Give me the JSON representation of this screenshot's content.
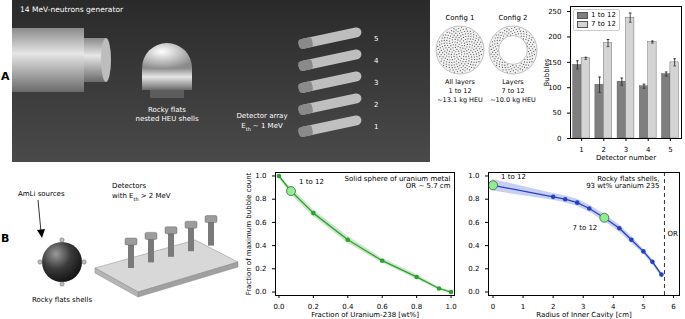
{
  "figure": {
    "panel_labels": [
      "A",
      "B"
    ],
    "photo_A": {
      "generator": "14 MeV-neutrons generator",
      "shells": [
        "Rocky flats",
        "nested HEU shells"
      ],
      "detector_array": {
        "text": "Detector array",
        "symbol": "E",
        "subscript": "th",
        "threshold": "~ 1 MeV"
      },
      "detector_numbers": [
        "5",
        "4",
        "3",
        "2",
        "1"
      ]
    },
    "configs": [
      {
        "name": "Config 1",
        "lines": [
          "All layers",
          "1 to 12",
          "~13.1 kg HEU"
        ],
        "shape": "solid"
      },
      {
        "name": "Config 2",
        "lines": [
          "Layers",
          "7 to 12",
          "~10.0 kg HEU"
        ],
        "shape": "shell"
      }
    ],
    "setup_B": {
      "sources": "AmLi sources",
      "shells": "Rocky flats shells",
      "detectors": {
        "text": "Detectors",
        "prefix": "with ",
        "symbol": "E",
        "subscript": "th",
        "threshold": "> 2 MeV"
      }
    }
  },
  "chart_data": [
    {
      "type": "bar",
      "x": [
        1,
        2,
        3,
        4,
        5
      ],
      "xlim": [
        0.5,
        5.5
      ],
      "xticks": [
        1,
        2,
        3,
        4,
        5
      ],
      "x_label": "Detector number",
      "y_label": "Bubbles",
      "ylim": [
        0,
        260
      ],
      "yticks": [
        0,
        50,
        100,
        150,
        200,
        250
      ],
      "legend": "top-left",
      "series": [
        {
          "name": "1 to 12",
          "color": "#7f7f7f",
          "values": [
            145,
            106,
            112,
            103,
            127
          ],
          "errors": [
            8,
            15,
            7,
            4,
            4
          ]
        },
        {
          "name": "7 to 12",
          "color": "#d4d4d4",
          "values": [
            158,
            188,
            238,
            190,
            150
          ],
          "errors": [
            2,
            7,
            9,
            2,
            7
          ]
        }
      ]
    },
    {
      "type": "line",
      "x_label": "Fraction of Uranium-238 [wt%]",
      "y_label": "Fraction of maximum bubble count",
      "x": [
        0,
        0.07,
        0.2,
        0.4,
        0.6,
        0.8,
        0.93,
        1.0
      ],
      "values": [
        1.0,
        0.87,
        0.68,
        0.45,
        0.27,
        0.13,
        0.03,
        0.0
      ],
      "band_lower": [
        0.98,
        0.84,
        0.65,
        0.42,
        0.25,
        0.11,
        0.02,
        0.0
      ],
      "band_upper": [
        1.0,
        0.9,
        0.71,
        0.48,
        0.29,
        0.15,
        0.04,
        0.01
      ],
      "color": "#2ca02c",
      "marker": "circle",
      "line_style": "solid",
      "xlim": [
        -0.02,
        1.02
      ],
      "xticks": [
        {
          "value": 0,
          "label": "0.0"
        },
        {
          "value": 0.2,
          "label": "0.2"
        },
        {
          "value": 0.4,
          "label": "0.4"
        },
        {
          "value": 0.6,
          "label": "0.6"
        },
        {
          "value": 0.8,
          "label": "0.8"
        },
        {
          "value": 1,
          "label": "1.0"
        }
      ],
      "ylim": [
        -0.03,
        1.03
      ],
      "yticks": [
        {
          "value": 0,
          "label": "0.0"
        },
        {
          "value": 0.2,
          "label": "0.2"
        },
        {
          "value": 0.4,
          "label": "0.4"
        },
        {
          "value": 0.6,
          "label": "0.6"
        },
        {
          "value": 0.8,
          "label": "0.8"
        },
        {
          "value": 1,
          "label": "1.0"
        }
      ],
      "text_box": [
        "Solid sphere of uranium metal",
        "OR ~ 5.7 cm"
      ],
      "annotations": [
        {
          "text": "1 to 12",
          "x": 0.07,
          "y": 0.87,
          "color": "#90ee90"
        }
      ]
    },
    {
      "type": "line",
      "x_label": "Radius of Inner Cavity [cm]",
      "x": [
        0,
        2.0,
        2.4,
        2.8,
        3.2,
        3.7,
        4.2,
        4.6,
        5.0,
        5.3,
        5.6
      ],
      "values": [
        0.92,
        0.82,
        0.8,
        0.77,
        0.72,
        0.64,
        0.55,
        0.45,
        0.35,
        0.26,
        0.15
      ],
      "band_lower": [
        0.87,
        0.79,
        0.77,
        0.74,
        0.69,
        0.61,
        0.52,
        0.42,
        0.33,
        0.24,
        0.13
      ],
      "band_upper": [
        0.97,
        0.85,
        0.83,
        0.8,
        0.75,
        0.67,
        0.58,
        0.48,
        0.37,
        0.28,
        0.17
      ],
      "color": "#2340c8",
      "marker": "circle",
      "line_style": "solid",
      "xlim": [
        -0.15,
        6.2
      ],
      "xticks": [
        0,
        1,
        2,
        3,
        4,
        5,
        6
      ],
      "ylim": [
        -0.03,
        1.03
      ],
      "yticks": [
        {
          "value": 0,
          "label": "0.0"
        },
        {
          "value": 0.2,
          "label": "0.2"
        },
        {
          "value": 0.4,
          "label": "0.4"
        },
        {
          "value": 0.6,
          "label": "0.6"
        },
        {
          "value": 0.8,
          "label": "0.8"
        },
        {
          "value": 1,
          "label": "1.0"
        }
      ],
      "text_box": [
        "Rocky flats shells,",
        "93 wt% uranium 235"
      ],
      "annotations": [
        {
          "text": "1 to 12",
          "x": 0,
          "y": 0.92,
          "color": "#90ee90"
        },
        {
          "text": "7 to 12",
          "x": 3.7,
          "y": 0.64,
          "color": "#90ee90"
        }
      ],
      "reference_line": {
        "x": 5.7,
        "label": "OR",
        "line_style": "dashed"
      }
    }
  ]
}
